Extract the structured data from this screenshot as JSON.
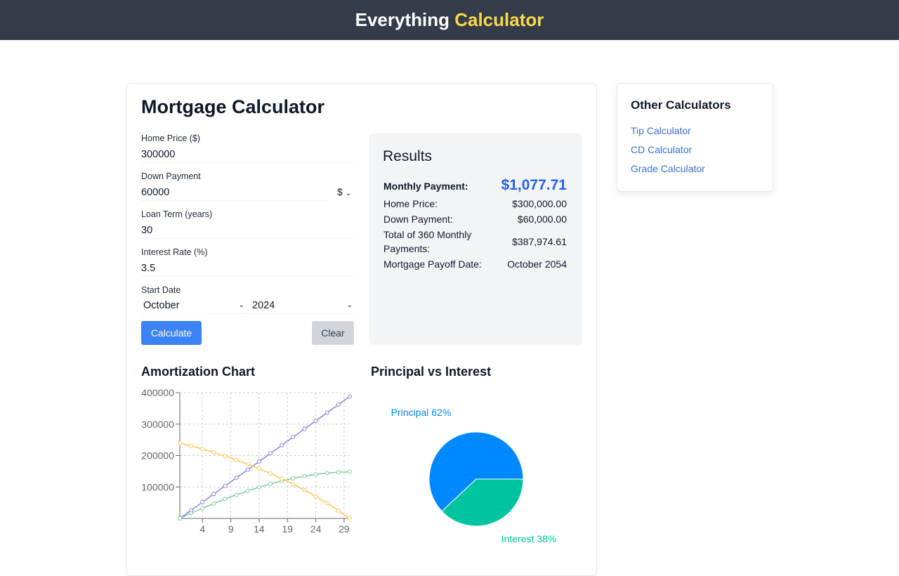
{
  "header": {
    "title_main": "Everything",
    "title_accent": "Calculator"
  },
  "calculator": {
    "title": "Mortgage Calculator",
    "fields": [
      {
        "label": "Home Price ($)",
        "value": "300000"
      },
      {
        "label": "Down Payment",
        "value": "60000",
        "unit": "$"
      },
      {
        "label": "Loan Term (years)",
        "value": "30"
      },
      {
        "label": "Interest Rate (%)",
        "value": "3.5"
      }
    ],
    "start_date": {
      "label": "Start Date",
      "month": "October",
      "year": "2024"
    },
    "buttons": {
      "calculate": "Calculate",
      "clear": "Clear"
    },
    "results": {
      "title": "Results",
      "monthly": {
        "label": "Monthly Payment:",
        "value": "$1,077.71"
      },
      "rows": [
        {
          "label": "Home Price:",
          "value": "$300,000.00"
        },
        {
          "label": "Down Payment:",
          "value": "$60,000.00"
        },
        {
          "label": "Total of 360 Monthly Payments:",
          "value": "$387,974.61"
        },
        {
          "label": "Mortgage Payoff Date:",
          "value": "October 2054"
        }
      ]
    }
  },
  "sidebar": {
    "title": "Other Calculators",
    "links": [
      "Tip Calculator",
      "CD Calculator",
      "Grade Calculator"
    ]
  },
  "chart_data": [
    {
      "type": "line",
      "title": "Amortization Chart",
      "x": [
        0,
        2,
        4,
        6,
        8,
        10,
        12,
        14,
        16,
        18,
        20,
        22,
        24,
        26,
        28,
        30
      ],
      "series": [
        {
          "color": "#8884d8",
          "values": [
            0,
            25865,
            51730,
            77595,
            103460,
            129325,
            155190,
            181055,
            206920,
            232785,
            258650,
            284516,
            310381,
            336246,
            362111,
            387975
          ]
        },
        {
          "color": "#82ca9d",
          "values": [
            0,
            16489,
            32300,
            47383,
            61685,
            75149,
            87715,
            99319,
            109890,
            119353,
            127630,
            134634,
            140271,
            144444,
            147045,
            147975
          ]
        },
        {
          "color": "#ffc658",
          "values": [
            240000,
            230624,
            220570,
            209788,
            198225,
            185824,
            172525,
            158264,
            142970,
            126568,
            108980,
            90118,
            69890,
            48198,
            24934,
            0
          ]
        }
      ],
      "xlim": [
        0,
        30
      ],
      "xticks": [
        4,
        9,
        14,
        19,
        24,
        29
      ],
      "ylim": [
        0,
        400000
      ],
      "yticks": [
        100000,
        200000,
        300000,
        400000
      ],
      "grid": true
    },
    {
      "type": "pie",
      "title": "Principal vs Interest",
      "categories": [
        "Principal",
        "Interest"
      ],
      "values": [
        62,
        38
      ],
      "value_labels": [
        "62%",
        "38%"
      ],
      "colors": [
        "#0088FE",
        "#00C49F"
      ]
    }
  ]
}
